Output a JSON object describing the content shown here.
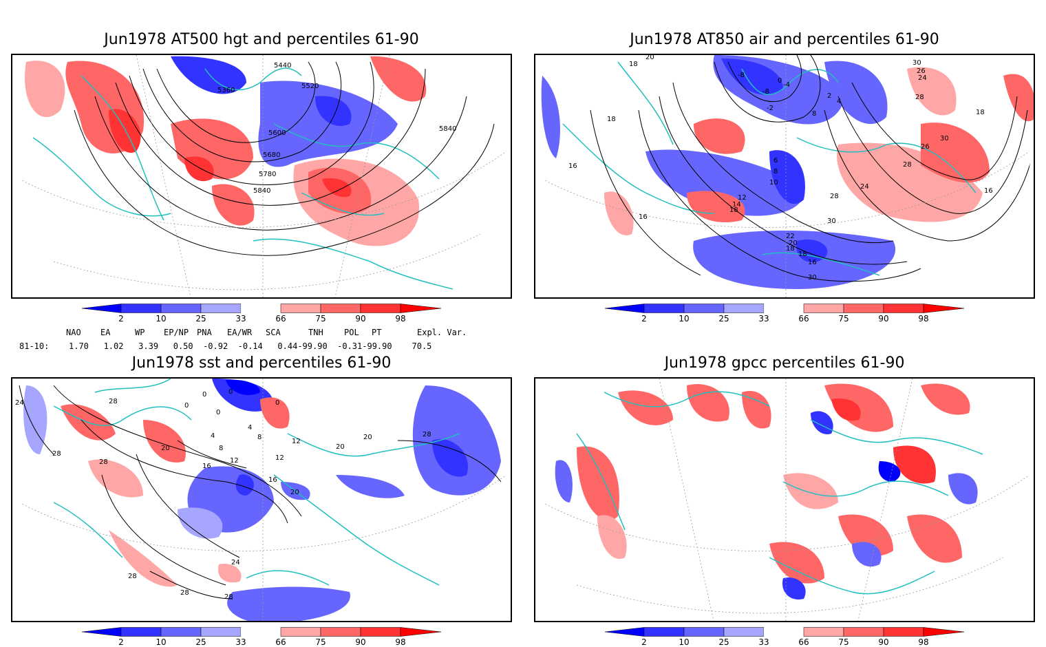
{
  "panels": [
    {
      "title": "Jun1978 AT500 hgt and percentiles 61-90",
      "contour_labels": [
        "5440",
        "5360",
        "5520",
        "5600",
        "5680",
        "5780",
        "5840",
        "5840"
      ]
    },
    {
      "title": "Jun1978 AT850 air and percentiles 61-90",
      "contour_labels": [
        "20",
        "18",
        "-8",
        "-8",
        "0",
        "-4",
        "2",
        "4",
        "8",
        "18",
        "-2",
        "6",
        "8",
        "10",
        "12",
        "14",
        "18",
        "16",
        "16",
        "28",
        "24",
        "26",
        "30",
        "28",
        "24",
        "22",
        "20",
        "18",
        "18",
        "16",
        "30",
        "30",
        "26",
        "28",
        "30",
        "18",
        "16"
      ]
    },
    {
      "title": "Jun1978 sst and percentiles 61-90",
      "contour_labels": [
        "24",
        "28",
        "28",
        "28",
        "0",
        "0",
        "0",
        "0",
        "0",
        "4",
        "4",
        "8",
        "8",
        "12",
        "12",
        "20",
        "20",
        "20",
        "16",
        "12",
        "16",
        "20",
        "28",
        "24",
        "28",
        "28",
        "28"
      ]
    },
    {
      "title": "Jun1978 gpcc percentiles 61-90",
      "contour_labels": []
    }
  ],
  "colorbar": {
    "labels": [
      "2",
      "10",
      "25",
      "33",
      "66",
      "75",
      "90",
      "98"
    ],
    "colors": [
      "#0000ff",
      "#3333ff",
      "#6666ff",
      "#a6a6ff",
      "#ffa6a6",
      "#ff6666",
      "#ff3333",
      "#ff0000"
    ]
  },
  "index_table": {
    "headers": [
      "NAO",
      "EA",
      "WP",
      "EP/NP",
      "PNA",
      "EA/WR",
      "SCA",
      "TNH",
      "POL",
      "PT",
      "Expl. Var."
    ],
    "row_label": "81-10:",
    "values": "1.70   1.02   3.39   0.50  -0.92  -0.14   0.44-99.90  -0.31-99.90    70.5"
  },
  "colors": {
    "coast": "#1fbfbf",
    "contour": "#000000",
    "frame": "#000000"
  }
}
